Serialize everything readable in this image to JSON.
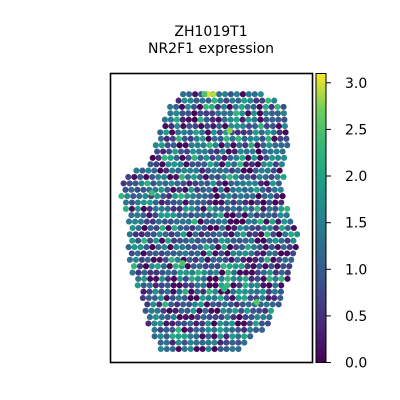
{
  "chart_data": {
    "type": "scatter",
    "title_line1": "ZH1019T1",
    "title_line2": "NR2F1 expression",
    "xlabel": "",
    "ylabel": "",
    "colormap": "viridis",
    "colorbar": {
      "min": 0.0,
      "max": 3.1,
      "ticks": [
        0.0,
        0.5,
        1.0,
        1.5,
        2.0,
        2.5,
        3.0
      ],
      "tick_labels": [
        "0.0",
        "0.5",
        "1.0",
        "1.5",
        "2.0",
        "2.5",
        "3.0"
      ]
    },
    "grid": false,
    "value_distribution": {
      "mean": 1.2,
      "sd": 0.6,
      "min": 0.0,
      "max": 3.0
    },
    "highlights": [
      {
        "x": 0.48,
        "y": 0.98,
        "value": 3.0
      },
      {
        "x": 0.51,
        "y": 0.98,
        "value": 2.9
      },
      {
        "x": 0.46,
        "y": 0.98,
        "value": 2.5
      },
      {
        "x": 0.6,
        "y": 0.84,
        "value": 2.8
      },
      {
        "x": 0.75,
        "y": 0.18,
        "value": 2.6
      },
      {
        "x": 0.17,
        "y": 0.6,
        "value": 2.4
      },
      {
        "x": 0.34,
        "y": 0.33,
        "value": 2.5
      },
      {
        "x": 0.57,
        "y": 0.23,
        "value": 2.3
      }
    ]
  }
}
